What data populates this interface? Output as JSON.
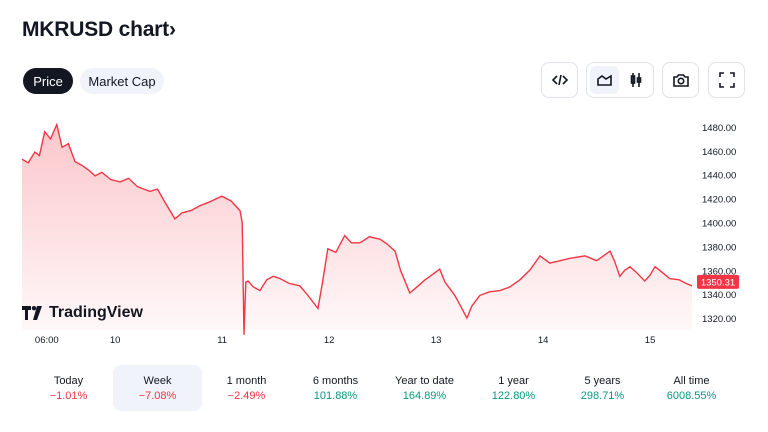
{
  "header": {
    "title": "MKRUSD chart",
    "chevron": "›"
  },
  "tabs": [
    {
      "label": "Price",
      "active": true
    },
    {
      "label": "Market Cap",
      "active": false
    }
  ],
  "toolbar": {
    "icons": [
      "embed-code-icon",
      "area-chart-icon",
      "candlestick-icon",
      "camera-icon",
      "fullscreen-icon"
    ]
  },
  "brand": {
    "logo_text": "TradingView"
  },
  "colors": {
    "line": "#f23645",
    "negative": "#f23645",
    "positive": "#089981"
  },
  "chart_data": {
    "type": "area",
    "symbol": "MKRUSD",
    "ylim": [
      1310,
      1490
    ],
    "yticks": [
      1320,
      1340,
      1360,
      1380,
      1400,
      1420,
      1440,
      1460,
      1480
    ],
    "ytick_labels": [
      "1320.00",
      "1340.00",
      "1360.00",
      "1380.00",
      "1400.00",
      "1420.00",
      "1440.00",
      "1460.00",
      "1480.00"
    ],
    "xlim": [
      3.1,
      153.4
    ],
    "xticks": [
      6,
      24,
      48,
      72,
      96,
      120,
      144
    ],
    "xtick_labels": [
      "06:00",
      "10",
      "11",
      "12",
      "13",
      "14",
      "15"
    ],
    "current_price": 1350.31,
    "current_label": "1350.31",
    "x_unit": "hours since day 9 00:00",
    "points": [
      [
        3.1,
        1453
      ],
      [
        4.5,
        1450
      ],
      [
        6,
        1459
      ],
      [
        7,
        1456
      ],
      [
        8.2,
        1476
      ],
      [
        9.5,
        1470
      ],
      [
        10.9,
        1482
      ],
      [
        12.1,
        1463
      ],
      [
        13.5,
        1466
      ],
      [
        15,
        1451
      ],
      [
        16.5,
        1448
      ],
      [
        18,
        1444
      ],
      [
        19.5,
        1439
      ],
      [
        21,
        1442
      ],
      [
        23,
        1436
      ],
      [
        25.1,
        1434
      ],
      [
        27,
        1437
      ],
      [
        29,
        1430
      ],
      [
        31.8,
        1426
      ],
      [
        33.5,
        1428
      ],
      [
        35,
        1418
      ],
      [
        37.4,
        1403
      ],
      [
        39,
        1408
      ],
      [
        41,
        1410
      ],
      [
        43,
        1414
      ],
      [
        45,
        1417
      ],
      [
        47.9,
        1422
      ],
      [
        50,
        1418
      ],
      [
        52,
        1410
      ],
      [
        52.5,
        1400
      ],
      [
        52.9,
        1306
      ],
      [
        53.3,
        1350
      ],
      [
        53.8,
        1351
      ],
      [
        55,
        1346
      ],
      [
        56.5,
        1343
      ],
      [
        58,
        1352
      ],
      [
        59.5,
        1355
      ],
      [
        61,
        1353
      ],
      [
        63,
        1349
      ],
      [
        65.4,
        1347
      ],
      [
        67,
        1340
      ],
      [
        69.5,
        1328
      ],
      [
        70.5,
        1350
      ],
      [
        71.7,
        1378
      ],
      [
        73.5,
        1375
      ],
      [
        75.5,
        1389
      ],
      [
        77,
        1383
      ],
      [
        78.9,
        1383
      ],
      [
        81,
        1388
      ],
      [
        83.4,
        1386
      ],
      [
        85,
        1382
      ],
      [
        86.8,
        1376
      ],
      [
        88,
        1360
      ],
      [
        90.1,
        1341
      ],
      [
        92,
        1347
      ],
      [
        93.5,
        1352
      ],
      [
        95,
        1356
      ],
      [
        96.8,
        1361
      ],
      [
        98,
        1350
      ],
      [
        100.2,
        1339
      ],
      [
        101.5,
        1330
      ],
      [
        102.9,
        1320
      ],
      [
        104,
        1330
      ],
      [
        105.8,
        1339
      ],
      [
        108,
        1342
      ],
      [
        110.3,
        1343
      ],
      [
        112.5,
        1346
      ],
      [
        114.8,
        1352
      ],
      [
        117,
        1360
      ],
      [
        119.3,
        1372
      ],
      [
        121.5,
        1366
      ],
      [
        123.8,
        1368
      ],
      [
        126,
        1370
      ],
      [
        129.4,
        1372
      ],
      [
        132,
        1368
      ],
      [
        135,
        1376
      ],
      [
        136,
        1368
      ],
      [
        137.2,
        1355
      ],
      [
        138.3,
        1360
      ],
      [
        139.5,
        1363
      ],
      [
        141,
        1358
      ],
      [
        142.8,
        1351
      ],
      [
        144,
        1356
      ],
      [
        145.1,
        1363
      ],
      [
        146.8,
        1358
      ],
      [
        148.4,
        1353
      ],
      [
        150.5,
        1352
      ],
      [
        152,
        1349
      ],
      [
        153.4,
        1347
      ]
    ]
  },
  "periods": [
    {
      "label": "Today",
      "value": "−1.01%",
      "sign": "neg"
    },
    {
      "label": "Week",
      "value": "−7.08%",
      "sign": "neg",
      "selected": true
    },
    {
      "label": "1 month",
      "value": "−2.49%",
      "sign": "neg"
    },
    {
      "label": "6 months",
      "value": "101.88%",
      "sign": "pos"
    },
    {
      "label": "Year to date",
      "value": "164.89%",
      "sign": "pos"
    },
    {
      "label": "1 year",
      "value": "122.80%",
      "sign": "pos"
    },
    {
      "label": "5 years",
      "value": "298.71%",
      "sign": "pos"
    },
    {
      "label": "All time",
      "value": "6008.55%",
      "sign": "pos"
    }
  ]
}
